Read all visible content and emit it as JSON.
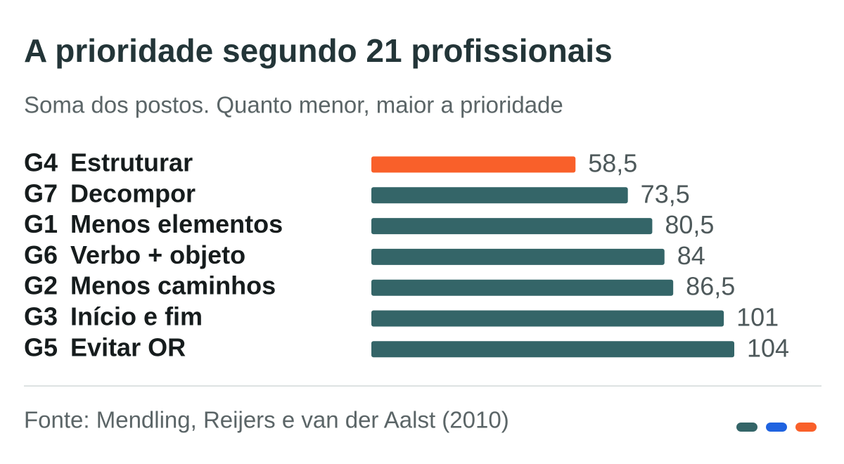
{
  "chart_data": {
    "type": "bar",
    "orientation": "horizontal",
    "title": "A prioridade segundo 21 profissionais",
    "subtitle": "Soma dos postos. Quanto menor, maior a prioridade",
    "codes": [
      "G4",
      "G7",
      "G1",
      "G6",
      "G2",
      "G3",
      "G5"
    ],
    "categories": [
      "Estruturar",
      "Decompor",
      "Menos elementos",
      "Verbo + objeto",
      "Menos caminhos",
      "Início e fim",
      "Evitar OR"
    ],
    "values": [
      58.5,
      73.5,
      80.5,
      84,
      86.5,
      101,
      104
    ],
    "value_labels": [
      "58,5",
      "73,5",
      "80,5",
      "84",
      "86,5",
      "101",
      "104"
    ],
    "colors": [
      "#f9602a",
      "#346568",
      "#346568",
      "#346568",
      "#346568",
      "#346568",
      "#346568"
    ],
    "source": "Fonte: Mendling, Reijers e van der Aalst (2010)"
  }
}
